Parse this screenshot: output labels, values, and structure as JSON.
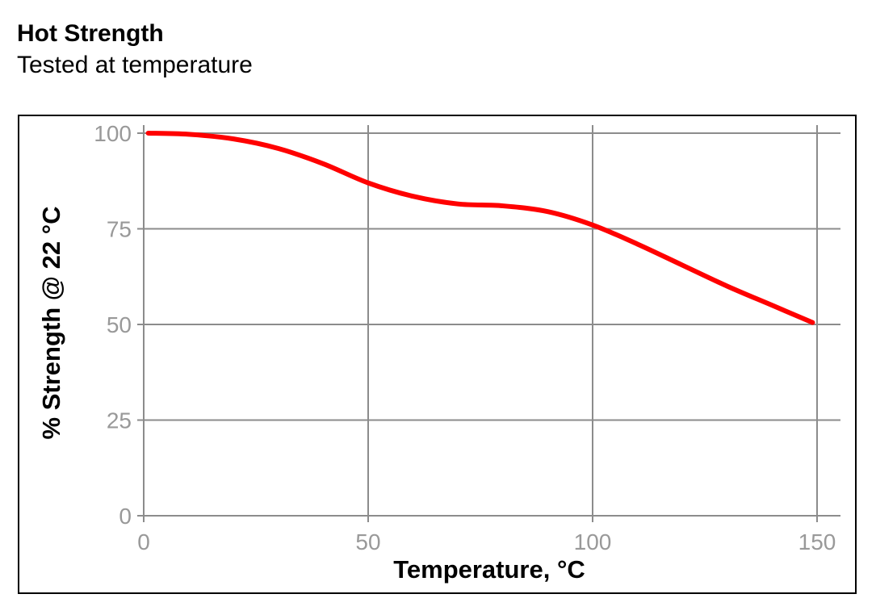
{
  "header": {
    "title": "Hot Strength",
    "subtitle": "Tested at temperature"
  },
  "chart_data": {
    "type": "line",
    "xlabel": "Temperature, °C",
    "ylabel": "% Strength @ 22 °C",
    "xlim": [
      0,
      150
    ],
    "ylim": [
      0,
      100
    ],
    "x_ticks": [
      0,
      50,
      100,
      150
    ],
    "y_ticks": [
      0,
      25,
      50,
      75,
      100
    ],
    "grid": true,
    "series": [
      {
        "color": "#ff0000",
        "x": [
          1,
          10,
          20,
          30,
          40,
          50,
          60,
          70,
          80,
          90,
          100,
          110,
          120,
          130,
          140,
          149
        ],
        "values": [
          100,
          99.7,
          98.5,
          96,
          92,
          87,
          83.5,
          81.5,
          81,
          79.5,
          76,
          71,
          65.5,
          60,
          55,
          50.5
        ]
      }
    ]
  }
}
